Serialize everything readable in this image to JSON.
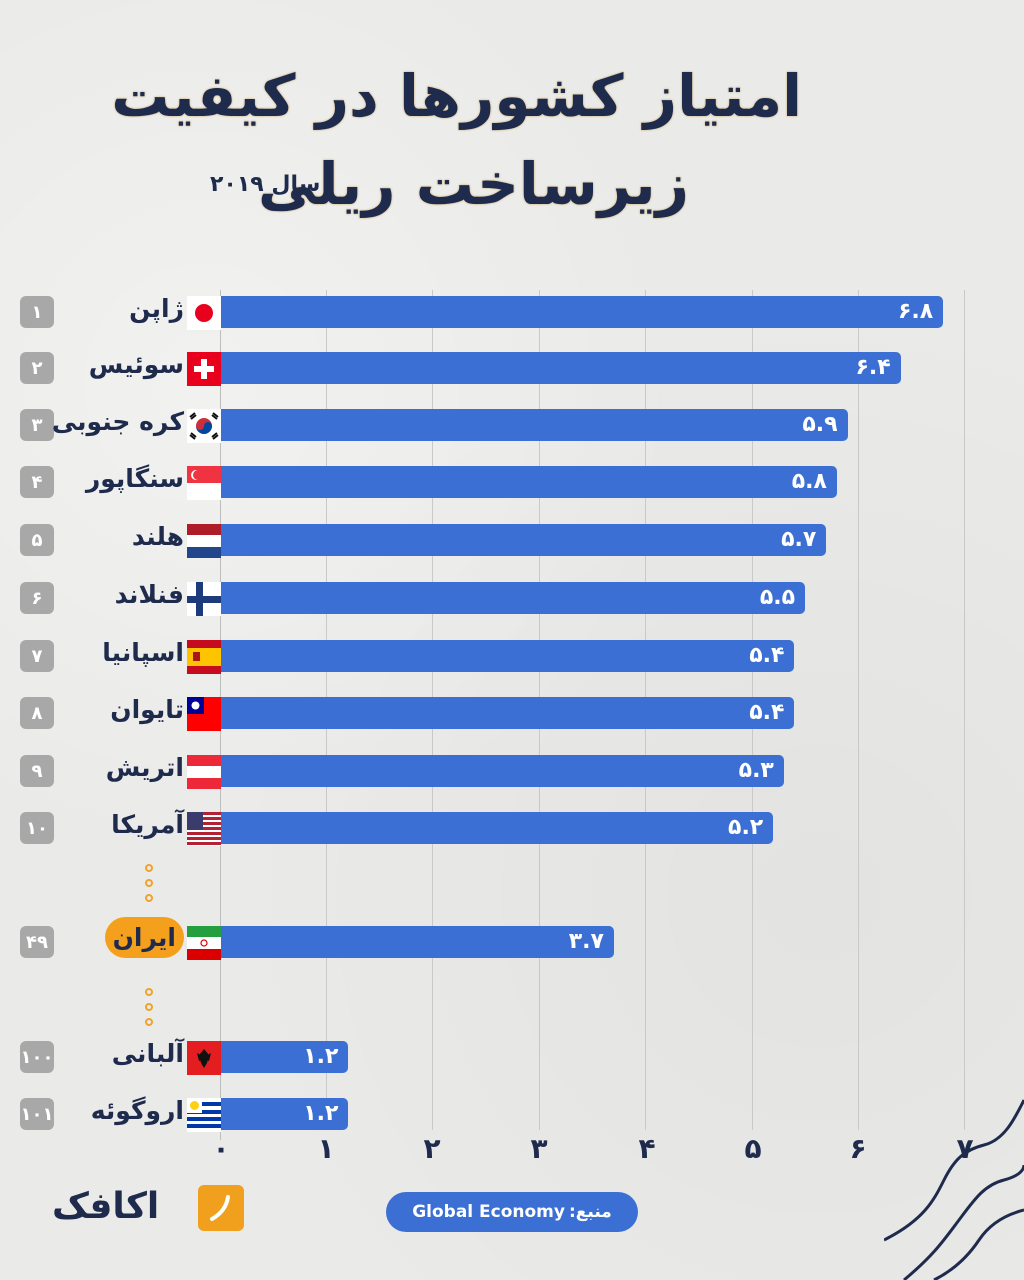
{
  "header": {
    "title_line1": "امتیاز کشورها در کیفیت",
    "title_line2": "زیرساخت ریلی",
    "year_label": "سال ۲۰۱۹"
  },
  "colors": {
    "bar": "#3b6fd4",
    "title": "#1f2b4d",
    "highlight": "#f4a01c",
    "rank_badge": "#a8a8a8",
    "background": "#eaeae8"
  },
  "rows": [
    {
      "rank": "۱",
      "country": "ژاپن",
      "flag": "japan",
      "value": 6.8,
      "value_label": "۶.۸"
    },
    {
      "rank": "۲",
      "country": "سوئیس",
      "flag": "switzerland",
      "value": 6.4,
      "value_label": "۶.۴"
    },
    {
      "rank": "۳",
      "country": "کره جنوبی",
      "flag": "south-korea",
      "value": 5.9,
      "value_label": "۵.۹"
    },
    {
      "rank": "۴",
      "country": "سنگاپور",
      "flag": "singapore",
      "value": 5.8,
      "value_label": "۵.۸"
    },
    {
      "rank": "۵",
      "country": "هلند",
      "flag": "netherlands",
      "value": 5.7,
      "value_label": "۵.۷"
    },
    {
      "rank": "۶",
      "country": "فنلاند",
      "flag": "finland",
      "value": 5.5,
      "value_label": "۵.۵"
    },
    {
      "rank": "۷",
      "country": "اسپانیا",
      "flag": "spain",
      "value": 5.4,
      "value_label": "۵.۴"
    },
    {
      "rank": "۸",
      "country": "تایوان",
      "flag": "taiwan",
      "value": 5.4,
      "value_label": "۵.۴"
    },
    {
      "rank": "۹",
      "country": "اتریش",
      "flag": "austria",
      "value": 5.3,
      "value_label": "۵.۳"
    },
    {
      "rank": "۱۰",
      "country": "آمریکا",
      "flag": "usa",
      "value": 5.2,
      "value_label": "۵.۲"
    },
    {
      "rank": "۴۹",
      "country": "ایران",
      "flag": "iran",
      "value": 3.7,
      "value_label": "۳.۷",
      "highlight": true
    },
    {
      "rank": "۱۰۰",
      "country": "آلبانی",
      "flag": "albania",
      "value": 1.2,
      "value_label": "۱.۲"
    },
    {
      "rank": "۱۰۱",
      "country": "اروگوئه",
      "flag": "uruguay",
      "value": 1.2,
      "value_label": "۱.۲"
    }
  ],
  "axis": {
    "ticks": [
      "۰",
      "۱",
      "۲",
      "۳",
      "۴",
      "۵",
      "۶",
      "۷"
    ]
  },
  "footer": {
    "source_label": "منبع:",
    "source_value": "Global Economy",
    "brand": "اکافک"
  },
  "chart_data": {
    "type": "bar",
    "orientation": "horizontal",
    "title": "امتیاز کشورها در کیفیت زیرساخت ریلی",
    "subtitle": "سال ۲۰۱۹",
    "categories": [
      "ژاپن",
      "سوئیس",
      "کره جنوبی",
      "سنگاپور",
      "هلند",
      "فنلاند",
      "اسپانیا",
      "تایوان",
      "اتریش",
      "آمریکا",
      "ایران",
      "آلبانی",
      "اروگوئه"
    ],
    "ranks": [
      1,
      2,
      3,
      4,
      5,
      6,
      7,
      8,
      9,
      10,
      49,
      100,
      101
    ],
    "values": [
      6.8,
      6.4,
      5.9,
      5.8,
      5.7,
      5.5,
      5.4,
      5.4,
      5.3,
      5.2,
      3.7,
      1.2,
      1.2
    ],
    "xlabel": "",
    "ylabel": "",
    "xlim": [
      0,
      7
    ],
    "xticks": [
      0,
      1,
      2,
      3,
      4,
      5,
      6,
      7
    ],
    "grid": true,
    "highlighted_category": "ایران",
    "source": "Global Economy",
    "legend": null
  }
}
